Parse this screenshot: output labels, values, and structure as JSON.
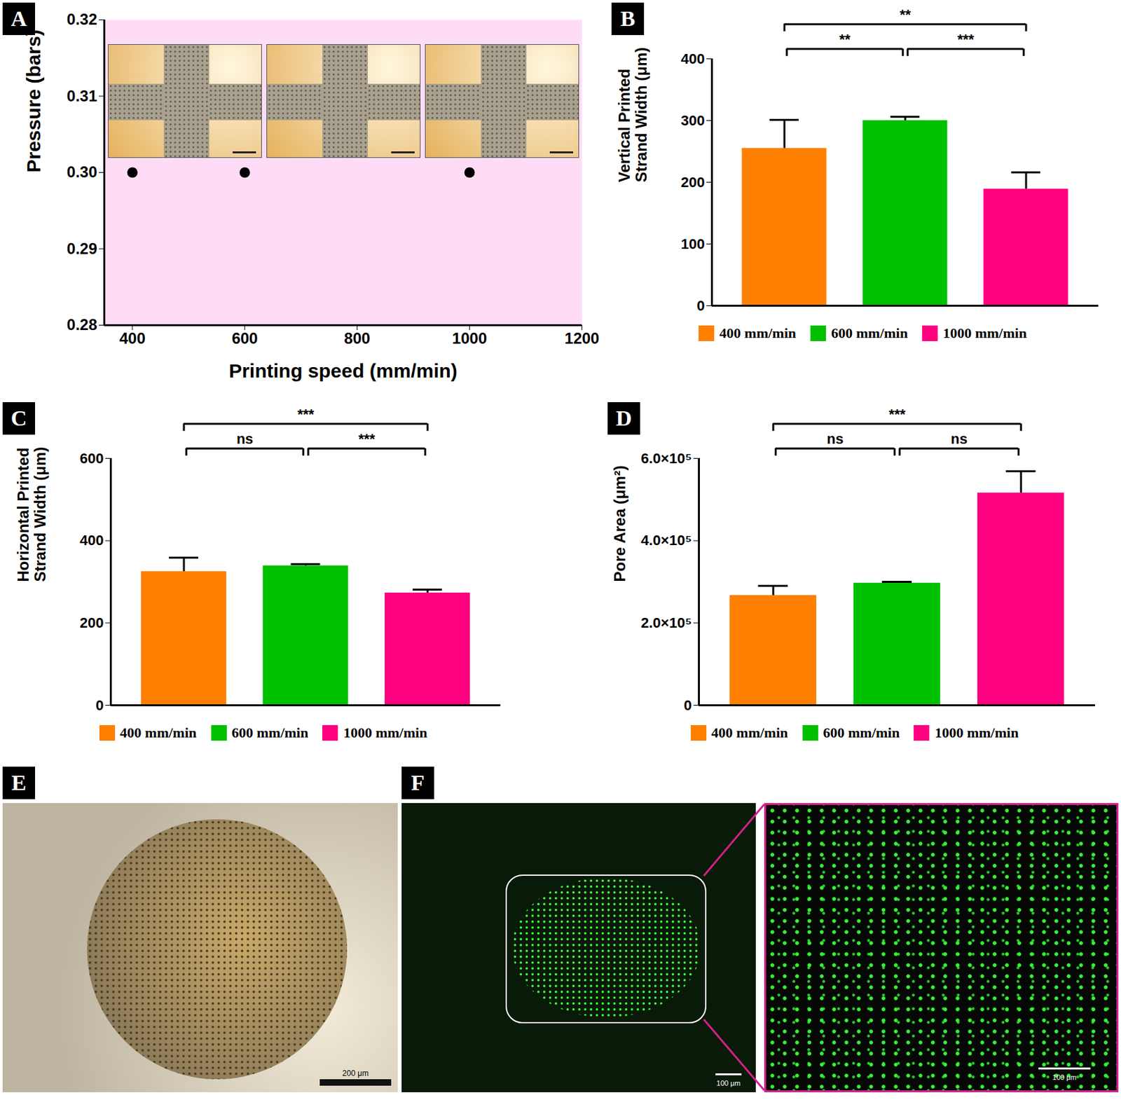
{
  "chart_data": [
    {
      "panel": "A",
      "type": "scatter",
      "x_label": "Printing speed (mm/min)",
      "y_label": "Pressure (bars)",
      "x": [
        400,
        600,
        1000
      ],
      "values": [
        0.3,
        0.3,
        0.3
      ],
      "color": "#000000",
      "marker": "circle",
      "xlim": [
        350,
        1200
      ],
      "xticks": [
        400,
        600,
        800,
        1000,
        1200
      ],
      "ylim": [
        0.28,
        0.32
      ],
      "yticks": [
        0.28,
        0.29,
        {
          "value": 0.3,
          "label": "0.30"
        },
        0.31,
        0.32
      ]
    },
    {
      "panel": "B",
      "type": "bar",
      "y_label": "Vertical Printed Strand Width (μm)",
      "categories": [
        "400 mm/min",
        "600 mm/min",
        "1000 mm/min"
      ],
      "values": [
        255,
        300,
        189
      ],
      "errors": [
        46,
        6,
        27
      ],
      "colors": [
        "#ff8000",
        "#00c000",
        "#ff0080"
      ],
      "ylim": [
        0,
        400
      ],
      "yticks": [
        0,
        100,
        200,
        300,
        400
      ],
      "legend": "bottom",
      "tick_labels": "y",
      "significance": [
        {
          "pair": [
            "400 mm/min",
            "600 mm/min"
          ],
          "label": "**"
        },
        {
          "pair": [
            "600 mm/min",
            "1000 mm/min"
          ],
          "label": "***"
        },
        {
          "pair": [
            "400 mm/min",
            "1000 mm/min"
          ],
          "label": "**"
        }
      ]
    },
    {
      "panel": "C",
      "type": "bar",
      "y_label": "Horizontal Printed Strand Width (μm)",
      "categories": [
        "400 mm/min",
        "600 mm/min",
        "1000 mm/min"
      ],
      "values": [
        325,
        339,
        273
      ],
      "errors": [
        34,
        4,
        8
      ],
      "colors": [
        "#ff8000",
        "#00c000",
        "#ff0080"
      ],
      "ylim": [
        0,
        600
      ],
      "yticks": [
        0,
        200,
        400,
        600
      ],
      "legend": "bottom",
      "tick_labels": "y",
      "significance": [
        {
          "pair": [
            "400 mm/min",
            "600 mm/min"
          ],
          "label": "ns"
        },
        {
          "pair": [
            "600 mm/min",
            "1000 mm/min"
          ],
          "label": "***"
        },
        {
          "pair": [
            "400 mm/min",
            "1000 mm/min"
          ],
          "label": "***"
        }
      ]
    },
    {
      "panel": "D",
      "type": "bar",
      "y_label": "Pore Area (μm²)",
      "categories": [
        "400 mm/min",
        "600 mm/min",
        "1000 mm/min"
      ],
      "values": [
        267000,
        297000,
        516000
      ],
      "errors": [
        23000,
        3000,
        53000
      ],
      "colors": [
        "#ff8000",
        "#00c000",
        "#ff0080"
      ],
      "ylim": [
        0,
        600000
      ],
      "yticks": [
        0,
        {
          "value": 200000,
          "label": "2.0×10⁵"
        },
        {
          "value": 400000,
          "label": "4.0×10⁵"
        },
        {
          "value": 600000,
          "label": "6.0×10⁵"
        }
      ],
      "legend": "bottom",
      "tick_labels": "y",
      "significance": [
        {
          "pair": [
            "400 mm/min",
            "600 mm/min"
          ],
          "label": "ns"
        },
        {
          "pair": [
            "600 mm/min",
            "1000 mm/min"
          ],
          "label": "ns"
        },
        {
          "pair": [
            "400 mm/min",
            "1000 mm/min"
          ],
          "label": "***"
        }
      ]
    }
  ],
  "images": [
    {
      "panel": "E",
      "scale_bars": [
        "200 μm"
      ]
    },
    {
      "panel": "F",
      "scale_bars": [
        "100 μm",
        "100 μm"
      ]
    }
  ]
}
